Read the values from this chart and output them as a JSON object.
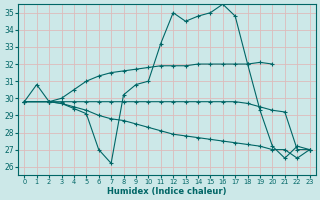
{
  "xlabel": "Humidex (Indice chaleur)",
  "xlim": [
    -0.5,
    23.5
  ],
  "ylim": [
    25.5,
    35.5
  ],
  "yticks": [
    26,
    27,
    28,
    29,
    30,
    31,
    32,
    33,
    34,
    35
  ],
  "xticks": [
    0,
    1,
    2,
    3,
    4,
    5,
    6,
    7,
    8,
    9,
    10,
    11,
    12,
    13,
    14,
    15,
    16,
    17,
    18,
    19,
    20,
    21,
    22,
    23
  ],
  "bg_color": "#cce8e8",
  "grid_color": "#ddbbbb",
  "line_color": "#006666",
  "lines": [
    {
      "x": [
        0,
        1,
        2,
        3,
        4,
        5,
        6,
        7,
        8,
        9,
        10,
        11,
        12,
        13,
        14,
        15,
        16,
        17,
        18,
        19,
        20,
        21,
        22,
        23
      ],
      "y": [
        29.8,
        30.8,
        29.8,
        29.7,
        29.4,
        29.1,
        27.0,
        26.2,
        30.2,
        30.8,
        31.0,
        33.2,
        35.0,
        34.5,
        34.8,
        35.0,
        35.5,
        34.8,
        32.0,
        29.3,
        27.2,
        26.5,
        27.2,
        27.0
      ]
    },
    {
      "x": [
        0,
        2,
        3,
        4,
        5,
        6,
        7,
        8,
        9,
        10,
        11,
        12,
        13,
        14,
        15,
        16,
        17,
        18,
        19,
        20
      ],
      "y": [
        29.8,
        29.8,
        30.0,
        30.5,
        31.0,
        31.3,
        31.5,
        31.6,
        31.7,
        31.8,
        31.9,
        31.9,
        31.9,
        32.0,
        32.0,
        32.0,
        32.0,
        32.0,
        32.1,
        32.0
      ]
    },
    {
      "x": [
        0,
        2,
        3,
        4,
        5,
        6,
        7,
        8,
        9,
        10,
        11,
        12,
        13,
        14,
        15,
        16,
        17,
        18,
        19,
        20,
        21,
        22,
        23
      ],
      "y": [
        29.8,
        29.8,
        29.8,
        29.8,
        29.8,
        29.8,
        29.8,
        29.8,
        29.8,
        29.8,
        29.8,
        29.8,
        29.8,
        29.8,
        29.8,
        29.8,
        29.8,
        29.7,
        29.5,
        29.3,
        29.2,
        27.0,
        27.0
      ]
    },
    {
      "x": [
        0,
        2,
        3,
        4,
        5,
        6,
        7,
        8,
        9,
        10,
        11,
        12,
        13,
        14,
        15,
        16,
        17,
        18,
        19,
        20,
        21,
        22,
        23
      ],
      "y": [
        29.8,
        29.8,
        29.7,
        29.5,
        29.3,
        29.0,
        28.8,
        28.7,
        28.5,
        28.3,
        28.1,
        27.9,
        27.8,
        27.7,
        27.6,
        27.5,
        27.4,
        27.3,
        27.2,
        27.0,
        27.0,
        26.5,
        27.0
      ]
    }
  ]
}
